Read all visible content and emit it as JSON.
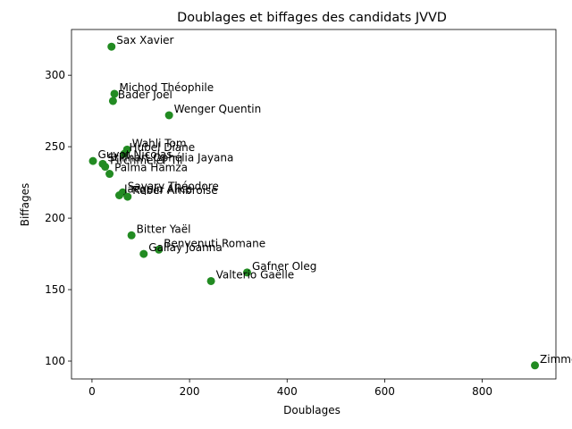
{
  "chart_data": {
    "type": "scatter",
    "title": "Doublages et biffages des candidats JVVD",
    "xlabel": "Doublages",
    "ylabel": "Biffages",
    "xlim": [
      -42,
      951
    ],
    "ylim": [
      87.5,
      332
    ],
    "xticks": [
      0,
      200,
      400,
      600,
      800
    ],
    "yticks": [
      100,
      150,
      200,
      250,
      300
    ],
    "grid": false,
    "point_color": "#228b22",
    "points": [
      {
        "label": "Sax Xavier",
        "x": 40,
        "y": 320
      },
      {
        "label": "Michod Théophile",
        "x": 46,
        "y": 287
      },
      {
        "label": "Bader Joël",
        "x": 43,
        "y": 282
      },
      {
        "label": "Wenger Quentin",
        "x": 158,
        "y": 272
      },
      {
        "label": "Wahli Tom",
        "x": 72,
        "y": 248
      },
      {
        "label": "Hubel Diane",
        "x": 66,
        "y": 245
      },
      {
        "label": "Guyot Nicolas",
        "x": 2,
        "y": 240
      },
      {
        "label": "Stillhart Ophélia Jayana",
        "x": 22,
        "y": 238
      },
      {
        "label": "Pirchmeier Til",
        "x": 27,
        "y": 236
      },
      {
        "label": "Palma Hamza",
        "x": 36,
        "y": 231
      },
      {
        "label": "Savary Théodore",
        "x": 63,
        "y": 218
      },
      {
        "label": "Jacquin Alice",
        "x": 56,
        "y": 216
      },
      {
        "label": "Reber Ambroise",
        "x": 73,
        "y": 215
      },
      {
        "label": "Bitter Yaël",
        "x": 81,
        "y": 188
      },
      {
        "label": "Benvenuti Romane",
        "x": 137,
        "y": 178
      },
      {
        "label": "Gallay Joanna",
        "x": 106,
        "y": 175
      },
      {
        "label": "Gafner Oleg",
        "x": 318,
        "y": 162
      },
      {
        "label": "Valterio Gaëlle",
        "x": 244,
        "y": 156
      },
      {
        "label": "Zimmermann Lena",
        "x": 908,
        "y": 97
      }
    ]
  }
}
